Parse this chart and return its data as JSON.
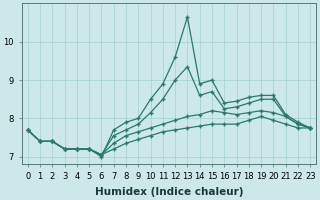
{
  "title": "",
  "xlabel": "Humidex (Indice chaleur)",
  "x": [
    0,
    1,
    2,
    3,
    4,
    5,
    6,
    7,
    8,
    9,
    10,
    11,
    12,
    13,
    14,
    15,
    16,
    17,
    18,
    19,
    20,
    21,
    22,
    23
  ],
  "line1": [
    7.7,
    7.4,
    7.4,
    7.2,
    7.2,
    7.2,
    7.0,
    7.7,
    7.9,
    8.0,
    8.5,
    8.9,
    9.6,
    10.65,
    8.9,
    9.0,
    8.4,
    8.45,
    8.55,
    8.6,
    8.6,
    8.1,
    7.9,
    7.75
  ],
  "line2": [
    7.7,
    7.4,
    7.4,
    7.2,
    7.2,
    7.2,
    7.05,
    7.55,
    7.7,
    7.85,
    8.15,
    8.5,
    9.0,
    9.35,
    8.6,
    8.7,
    8.25,
    8.3,
    8.4,
    8.5,
    8.5,
    8.05,
    7.85,
    7.75
  ],
  "line3": [
    7.7,
    7.4,
    7.4,
    7.2,
    7.2,
    7.2,
    7.05,
    7.35,
    7.55,
    7.65,
    7.75,
    7.85,
    7.95,
    8.05,
    8.1,
    8.2,
    8.15,
    8.1,
    8.15,
    8.2,
    8.15,
    8.05,
    7.85,
    7.75
  ],
  "line4": [
    7.7,
    7.4,
    7.4,
    7.2,
    7.2,
    7.2,
    7.05,
    7.2,
    7.35,
    7.45,
    7.55,
    7.65,
    7.7,
    7.75,
    7.8,
    7.85,
    7.85,
    7.85,
    7.95,
    8.05,
    7.95,
    7.85,
    7.75,
    7.75
  ],
  "line_color": "#2a7a6a",
  "bg_color": "#cce8e8",
  "grid_color": "#aad4d4",
  "ylim": [
    6.8,
    11.0
  ],
  "yticks": [
    7,
    8,
    9,
    10
  ],
  "xticks": [
    0,
    1,
    2,
    3,
    4,
    5,
    6,
    7,
    8,
    9,
    10,
    11,
    12,
    13,
    14,
    15,
    16,
    17,
    18,
    19,
    20,
    21,
    22,
    23
  ],
  "markersize": 3.5,
  "linewidth": 0.9,
  "label_fontsize": 7.5,
  "tick_fontsize": 6.0
}
